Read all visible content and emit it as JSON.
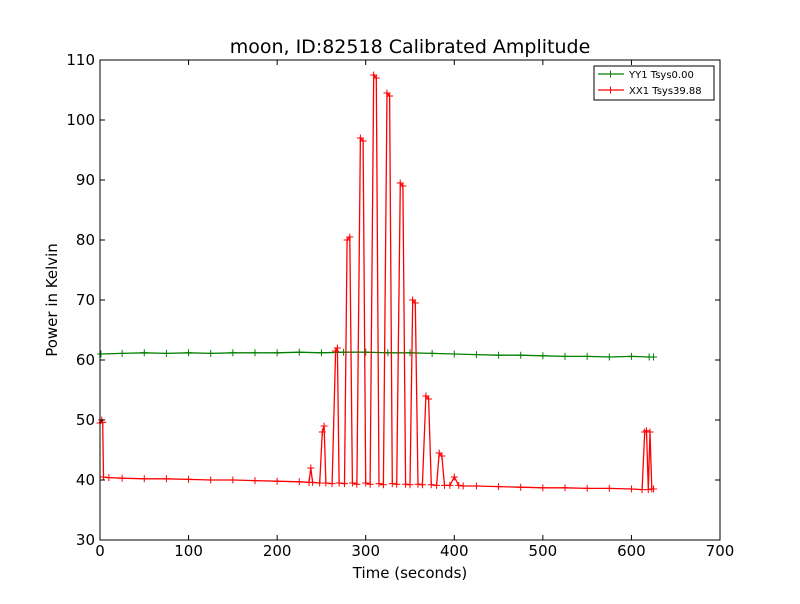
{
  "chart_data": {
    "type": "line",
    "title": "moon, ID:82518 Calibrated Amplitude",
    "xlabel": "Time (seconds)",
    "ylabel": "Power in Kelvin",
    "xlim": [
      0,
      700
    ],
    "ylim": [
      30,
      110
    ],
    "xticks": [
      0,
      100,
      200,
      300,
      400,
      500,
      600,
      700
    ],
    "yticks": [
      30,
      40,
      50,
      60,
      70,
      80,
      90,
      100,
      110
    ],
    "grid": false,
    "legend_position": "top-right",
    "series": [
      {
        "name": "YY1 Tsys0.00",
        "color": "#008000",
        "marker": "+",
        "x": [
          1,
          25,
          50,
          75,
          100,
          125,
          150,
          175,
          200,
          225,
          250,
          275,
          300,
          325,
          350,
          375,
          400,
          425,
          450,
          475,
          500,
          525,
          550,
          575,
          600,
          620,
          625
        ],
        "y": [
          61.0,
          61.1,
          61.2,
          61.1,
          61.2,
          61.1,
          61.2,
          61.2,
          61.2,
          61.3,
          61.2,
          61.3,
          61.3,
          61.2,
          61.2,
          61.1,
          61.0,
          60.9,
          60.8,
          60.8,
          60.7,
          60.6,
          60.6,
          60.5,
          60.6,
          60.5,
          60.5
        ]
      },
      {
        "name": "XX1 Tsys39.88",
        "color": "#ff0000",
        "marker": "+",
        "x": [
          0,
          2,
          3,
          4,
          10,
          25,
          50,
          75,
          100,
          125,
          150,
          175,
          200,
          225,
          236,
          238,
          240,
          248,
          251,
          253,
          255,
          262,
          266,
          268,
          270,
          276,
          279,
          282,
          285,
          290,
          294,
          297,
          300,
          305,
          309,
          312,
          315,
          320,
          324,
          327,
          330,
          335,
          339,
          342,
          345,
          350,
          353,
          356,
          359,
          364,
          368,
          371,
          374,
          380,
          383,
          386,
          389,
          395,
          400,
          405,
          410,
          425,
          450,
          475,
          500,
          525,
          550,
          575,
          600,
          612,
          615,
          617,
          619,
          621,
          623,
          625
        ],
        "y": [
          49.5,
          50.0,
          49.6,
          40.5,
          40.4,
          40.3,
          40.2,
          40.2,
          40.1,
          40.0,
          40.0,
          39.9,
          39.8,
          39.7,
          39.6,
          42.0,
          39.6,
          39.5,
          48.0,
          49.0,
          39.5,
          39.4,
          61.5,
          62.0,
          39.5,
          39.4,
          80.0,
          80.5,
          39.5,
          39.3,
          97.0,
          96.5,
          39.5,
          39.3,
          107.5,
          107.0,
          39.4,
          39.2,
          104.5,
          104.0,
          39.4,
          39.3,
          89.5,
          89.0,
          39.3,
          39.2,
          70.0,
          69.5,
          39.3,
          39.2,
          54.0,
          53.5,
          39.2,
          39.1,
          44.5,
          44.0,
          39.1,
          39.1,
          40.5,
          39.1,
          39.0,
          39.0,
          38.9,
          38.8,
          38.7,
          38.7,
          38.6,
          38.6,
          38.5,
          38.4,
          48.0,
          48.2,
          38.4,
          48.0,
          38.5,
          38.5
        ]
      }
    ]
  }
}
